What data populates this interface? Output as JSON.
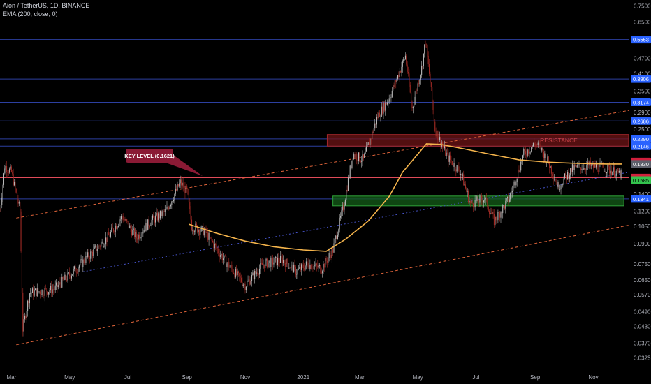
{
  "header": {
    "title": "Aion / TetherUS, 1D, BINANCE",
    "indicator": "EMA (200, close, 0)"
  },
  "colors": {
    "background": "#000000",
    "up": "#b9b9b9",
    "down": "#a22a24",
    "ema": "#f6b54c",
    "hline": "#2c3fa0",
    "hline_key": "#e04b59",
    "channel": "#e0643a",
    "trendline": "#4653c8",
    "resistance_fill": "#6f1416",
    "support_fill": "#145d18",
    "callout": "#8a1a35"
  },
  "chart_data": {
    "type": "candlestick",
    "symbol": "Aion / TetherUS",
    "timeframe": "1D",
    "exchange": "BINANCE",
    "y_scale": "log",
    "ylim": [
      0.0295,
      0.79
    ],
    "y_ticks": [
      "0.7500",
      "0.6500",
      "0.4700",
      "0.4100",
      "0.3500",
      "0.2900",
      "0.2500",
      "0.1400",
      "0.1200",
      "0.1050",
      "0.0900",
      "0.0750",
      "0.0650",
      "0.0570",
      "0.0490",
      "0.0430",
      "0.0370",
      "0.0325"
    ],
    "x_ticks": [
      "Mar",
      "May",
      "Jul",
      "Sep",
      "Nov",
      "2021",
      "Mar",
      "May",
      "Jul",
      "Sep",
      "Nov"
    ],
    "x_range": [
      "2020-02-18",
      "2021-12-08"
    ],
    "annotations": {
      "key_level": "KEY LEVEL (0.1621)",
      "resistance": "RESISTANCE"
    },
    "horizontal_levels": [
      {
        "price": "0.5553",
        "value": 0.5553,
        "kind": "level"
      },
      {
        "price": "0.3906",
        "value": 0.3906,
        "kind": "level"
      },
      {
        "price": "0.3174",
        "value": 0.3174,
        "kind": "level"
      },
      {
        "price": "0.2686",
        "value": 0.2686,
        "kind": "level"
      },
      {
        "price": "0.2290",
        "value": 0.229,
        "kind": "level"
      },
      {
        "price": "0.2146",
        "value": 0.2146,
        "kind": "level"
      },
      {
        "price": "0.1621",
        "value": 0.1621,
        "kind": "key"
      },
      {
        "price": "0.1341",
        "value": 0.1341,
        "kind": "level"
      }
    ],
    "price_badges": [
      {
        "price": "0.1870",
        "value": 0.187,
        "kind": "red"
      },
      {
        "price": "0.1830",
        "value": 0.183,
        "kind": "gray"
      },
      {
        "price": "0.1585",
        "value": 0.1585,
        "kind": "green"
      }
    ],
    "zones": [
      {
        "name": "resistance",
        "from": "2021-01-26",
        "to": "2021-12-08",
        "low": 0.2146,
        "high": 0.238
      },
      {
        "name": "support",
        "from": "2021-02-01",
        "to": "2021-12-03",
        "low": 0.126,
        "high": 0.1375
      }
    ],
    "lines": [
      {
        "name": "channel-upper",
        "from": [
          "2020-03-06",
          0.113
        ],
        "to": [
          "2021-12-08",
          0.295
        ],
        "style": "dashed"
      },
      {
        "name": "channel-lower",
        "from": [
          "2020-03-06",
          0.0365
        ],
        "to": [
          "2021-12-08",
          0.106
        ],
        "style": "dashed"
      },
      {
        "name": "trendline",
        "from": [
          "2020-05-15",
          0.07
        ],
        "to": [
          "2021-12-08",
          0.17
        ],
        "style": "dotted"
      }
    ],
    "ema_200": [
      [
        "2020-09-03",
        0.107
      ],
      [
        "2020-10-01",
        0.099
      ],
      [
        "2020-11-01",
        0.092
      ],
      [
        "2020-12-01",
        0.0875
      ],
      [
        "2021-01-01",
        0.085
      ],
      [
        "2021-01-25",
        0.084
      ],
      [
        "2021-02-15",
        0.094
      ],
      [
        "2021-03-10",
        0.11
      ],
      [
        "2021-04-01",
        0.137
      ],
      [
        "2021-04-15",
        0.17
      ],
      [
        "2021-05-01",
        0.2
      ],
      [
        "2021-05-10",
        0.219
      ],
      [
        "2021-05-25",
        0.218
      ],
      [
        "2021-06-20",
        0.209
      ],
      [
        "2021-07-15",
        0.2
      ],
      [
        "2021-08-15",
        0.19
      ],
      [
        "2021-09-15",
        0.186
      ],
      [
        "2021-10-15",
        0.184
      ],
      [
        "2021-11-15",
        0.183
      ],
      [
        "2021-12-01",
        0.183
      ]
    ],
    "price_path": [
      [
        "2020-02-18",
        0.12
      ],
      [
        "2020-02-23",
        0.18
      ],
      [
        "2020-03-01",
        0.17
      ],
      [
        "2020-03-06",
        0.14
      ],
      [
        "2020-03-10",
        0.12
      ],
      [
        "2020-03-13",
        0.042
      ],
      [
        "2020-03-20",
        0.058
      ],
      [
        "2020-04-15",
        0.06
      ],
      [
        "2020-05-01",
        0.068
      ],
      [
        "2020-05-20",
        0.08
      ],
      [
        "2020-06-10",
        0.095
      ],
      [
        "2020-06-25",
        0.115
      ],
      [
        "2020-07-10",
        0.095
      ],
      [
        "2020-07-25",
        0.11
      ],
      [
        "2020-08-10",
        0.12
      ],
      [
        "2020-08-25",
        0.155
      ],
      [
        "2020-09-01",
        0.143
      ],
      [
        "2020-09-06",
        0.105
      ],
      [
        "2020-09-20",
        0.1
      ],
      [
        "2020-10-10",
        0.078
      ],
      [
        "2020-11-01",
        0.062
      ],
      [
        "2020-11-20",
        0.075
      ],
      [
        "2020-12-10",
        0.078
      ],
      [
        "2020-12-25",
        0.07
      ],
      [
        "2021-01-05",
        0.075
      ],
      [
        "2021-01-20",
        0.072
      ],
      [
        "2021-02-01",
        0.085
      ],
      [
        "2021-02-12",
        0.125
      ],
      [
        "2021-02-22",
        0.2
      ],
      [
        "2021-03-05",
        0.19
      ],
      [
        "2021-03-20",
        0.28
      ],
      [
        "2021-04-01",
        0.33
      ],
      [
        "2021-04-10",
        0.4
      ],
      [
        "2021-04-18",
        0.48
      ],
      [
        "2021-04-25",
        0.3
      ],
      [
        "2021-05-05",
        0.43
      ],
      [
        "2021-05-09",
        0.55
      ],
      [
        "2021-05-14",
        0.38
      ],
      [
        "2021-05-19",
        0.25
      ],
      [
        "2021-06-01",
        0.195
      ],
      [
        "2021-06-15",
        0.17
      ],
      [
        "2021-06-25",
        0.128
      ],
      [
        "2021-07-10",
        0.135
      ],
      [
        "2021-07-20",
        0.11
      ],
      [
        "2021-08-05",
        0.135
      ],
      [
        "2021-08-20",
        0.2
      ],
      [
        "2021-09-01",
        0.22
      ],
      [
        "2021-09-07",
        0.21
      ],
      [
        "2021-09-15",
        0.185
      ],
      [
        "2021-09-25",
        0.15
      ],
      [
        "2021-10-10",
        0.175
      ],
      [
        "2021-10-25",
        0.18
      ],
      [
        "2021-11-10",
        0.178
      ],
      [
        "2021-11-25",
        0.17
      ],
      [
        "2021-12-01",
        0.165
      ]
    ]
  }
}
